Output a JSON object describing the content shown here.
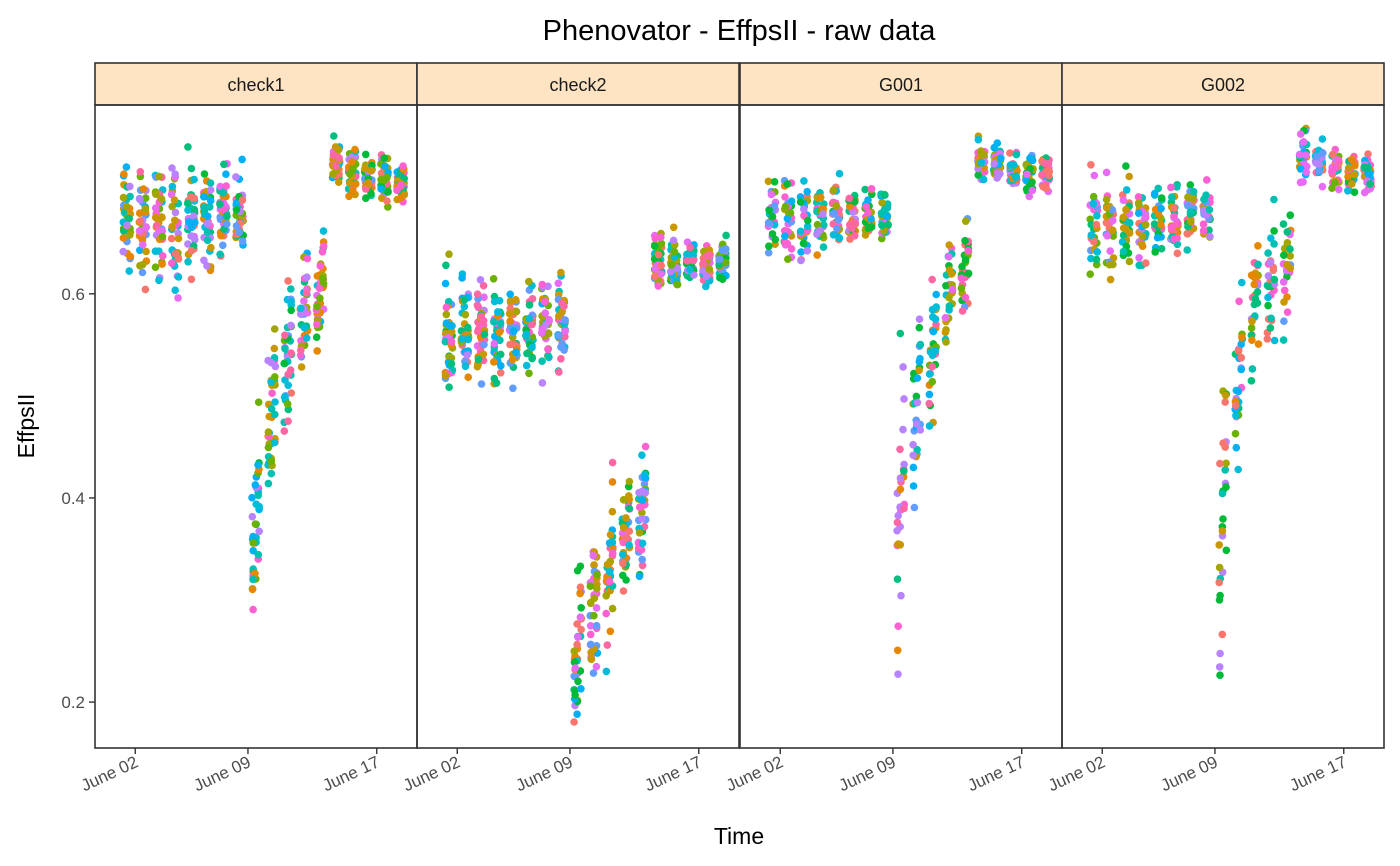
{
  "chart_data": {
    "type": "scatter",
    "title": "Phenovator - EffpsII - raw data",
    "xlabel": "Time",
    "ylabel": "EffpsII",
    "x_ticks": [
      "June 02",
      "June 09",
      "June 17"
    ],
    "x_range": [
      "2018-05-30T12:00",
      "2018-06-19T12:00"
    ],
    "y_ticks": [
      0.2,
      0.4,
      0.6
    ],
    "ylim": [
      0.155,
      0.785
    ],
    "grid": false,
    "legend": "none",
    "facet_strip_color": "#ffe4c4",
    "point_colors": [
      "#F8766D",
      "#E58700",
      "#C99800",
      "#A3A500",
      "#6BB100",
      "#00BA38",
      "#00BF7D",
      "#00C0AF",
      "#00BCD8",
      "#00B0F6",
      "#619CFF",
      "#B983FF",
      "#E76BF3",
      "#FD61D1",
      "#FF67A4"
    ],
    "panels": [
      {
        "label": "check1",
        "points_per_day": 13,
        "days": [
          {
            "date": "2018-06-01",
            "mean": 0.668,
            "spread": 0.028
          },
          {
            "date": "2018-06-02",
            "mean": 0.662,
            "spread": 0.028
          },
          {
            "date": "2018-06-03",
            "mean": 0.666,
            "spread": 0.027
          },
          {
            "date": "2018-06-04",
            "mean": 0.662,
            "spread": 0.026
          },
          {
            "date": "2018-06-05",
            "mean": 0.67,
            "spread": 0.025
          },
          {
            "date": "2018-06-06",
            "mean": 0.674,
            "spread": 0.022
          },
          {
            "date": "2018-06-07",
            "mean": 0.678,
            "spread": 0.02
          },
          {
            "date": "2018-06-08",
            "mean": 0.68,
            "spread": 0.02
          },
          {
            "date": "2018-06-09",
            "mean": 0.37,
            "spread": 0.04
          },
          {
            "date": "2018-06-10",
            "mean": 0.48,
            "spread": 0.035
          },
          {
            "date": "2018-06-11",
            "mean": 0.54,
            "spread": 0.03
          },
          {
            "date": "2018-06-12",
            "mean": 0.575,
            "spread": 0.025
          },
          {
            "date": "2018-06-13",
            "mean": 0.6,
            "spread": 0.022
          },
          {
            "date": "2018-06-14",
            "mean": 0.725,
            "spread": 0.012
          },
          {
            "date": "2018-06-15",
            "mean": 0.718,
            "spread": 0.012
          },
          {
            "date": "2018-06-16",
            "mean": 0.713,
            "spread": 0.011
          },
          {
            "date": "2018-06-17",
            "mean": 0.711,
            "spread": 0.011
          },
          {
            "date": "2018-06-18",
            "mean": 0.708,
            "spread": 0.011
          }
        ]
      },
      {
        "label": "check2",
        "points_per_day": 13,
        "days": [
          {
            "date": "2018-06-01",
            "mean": 0.565,
            "spread": 0.025
          },
          {
            "date": "2018-06-02",
            "mean": 0.565,
            "spread": 0.025
          },
          {
            "date": "2018-06-03",
            "mean": 0.565,
            "spread": 0.024
          },
          {
            "date": "2018-06-04",
            "mean": 0.56,
            "spread": 0.024
          },
          {
            "date": "2018-06-05",
            "mean": 0.558,
            "spread": 0.023
          },
          {
            "date": "2018-06-06",
            "mean": 0.565,
            "spread": 0.022
          },
          {
            "date": "2018-06-07",
            "mean": 0.57,
            "spread": 0.022
          },
          {
            "date": "2018-06-08",
            "mean": 0.575,
            "spread": 0.02
          },
          {
            "date": "2018-06-09",
            "mean": 0.255,
            "spread": 0.035
          },
          {
            "date": "2018-06-10",
            "mean": 0.29,
            "spread": 0.03
          },
          {
            "date": "2018-06-11",
            "mean": 0.33,
            "spread": 0.028
          },
          {
            "date": "2018-06-12",
            "mean": 0.36,
            "spread": 0.026
          },
          {
            "date": "2018-06-13",
            "mean": 0.39,
            "spread": 0.025
          },
          {
            "date": "2018-06-14",
            "mean": 0.635,
            "spread": 0.012
          },
          {
            "date": "2018-06-15",
            "mean": 0.63,
            "spread": 0.012
          },
          {
            "date": "2018-06-16",
            "mean": 0.632,
            "spread": 0.011
          },
          {
            "date": "2018-06-17",
            "mean": 0.63,
            "spread": 0.011
          },
          {
            "date": "2018-06-18",
            "mean": 0.63,
            "spread": 0.011
          }
        ]
      },
      {
        "label": "G001",
        "points_per_day": 10,
        "days": [
          {
            "date": "2018-06-01",
            "mean": 0.675,
            "spread": 0.02
          },
          {
            "date": "2018-06-02",
            "mean": 0.67,
            "spread": 0.02
          },
          {
            "date": "2018-06-03",
            "mean": 0.672,
            "spread": 0.018
          },
          {
            "date": "2018-06-04",
            "mean": 0.67,
            "spread": 0.018
          },
          {
            "date": "2018-06-05",
            "mean": 0.675,
            "spread": 0.015
          },
          {
            "date": "2018-06-06",
            "mean": 0.678,
            "spread": 0.014
          },
          {
            "date": "2018-06-07",
            "mean": 0.68,
            "spread": 0.013
          },
          {
            "date": "2018-06-08",
            "mean": 0.678,
            "spread": 0.013
          },
          {
            "date": "2018-06-09",
            "mean": 0.39,
            "spread": 0.06
          },
          {
            "date": "2018-06-10",
            "mean": 0.48,
            "spread": 0.04
          },
          {
            "date": "2018-06-11",
            "mean": 0.55,
            "spread": 0.03
          },
          {
            "date": "2018-06-12",
            "mean": 0.595,
            "spread": 0.025
          },
          {
            "date": "2018-06-13",
            "mean": 0.625,
            "spread": 0.02
          },
          {
            "date": "2018-06-14",
            "mean": 0.73,
            "spread": 0.012
          },
          {
            "date": "2018-06-15",
            "mean": 0.728,
            "spread": 0.011
          },
          {
            "date": "2018-06-16",
            "mean": 0.722,
            "spread": 0.01
          },
          {
            "date": "2018-06-17",
            "mean": 0.72,
            "spread": 0.01
          },
          {
            "date": "2018-06-18",
            "mean": 0.718,
            "spread": 0.01
          }
        ]
      },
      {
        "label": "G002",
        "points_per_day": 10,
        "days": [
          {
            "date": "2018-06-01",
            "mean": 0.665,
            "spread": 0.025
          },
          {
            "date": "2018-06-02",
            "mean": 0.665,
            "spread": 0.022
          },
          {
            "date": "2018-06-03",
            "mean": 0.668,
            "spread": 0.02
          },
          {
            "date": "2018-06-04",
            "mean": 0.665,
            "spread": 0.02
          },
          {
            "date": "2018-06-05",
            "mean": 0.672,
            "spread": 0.018
          },
          {
            "date": "2018-06-06",
            "mean": 0.675,
            "spread": 0.016
          },
          {
            "date": "2018-06-07",
            "mean": 0.68,
            "spread": 0.015
          },
          {
            "date": "2018-06-08",
            "mean": 0.68,
            "spread": 0.015
          },
          {
            "date": "2018-06-09",
            "mean": 0.38,
            "spread": 0.055
          },
          {
            "date": "2018-06-10",
            "mean": 0.52,
            "spread": 0.04
          },
          {
            "date": "2018-06-11",
            "mean": 0.585,
            "spread": 0.03
          },
          {
            "date": "2018-06-12",
            "mean": 0.61,
            "spread": 0.025
          },
          {
            "date": "2018-06-13",
            "mean": 0.63,
            "spread": 0.022
          },
          {
            "date": "2018-06-14",
            "mean": 0.735,
            "spread": 0.012
          },
          {
            "date": "2018-06-15",
            "mean": 0.728,
            "spread": 0.011
          },
          {
            "date": "2018-06-16",
            "mean": 0.722,
            "spread": 0.01
          },
          {
            "date": "2018-06-17",
            "mean": 0.718,
            "spread": 0.01
          },
          {
            "date": "2018-06-18",
            "mean": 0.718,
            "spread": 0.01
          }
        ]
      }
    ]
  }
}
